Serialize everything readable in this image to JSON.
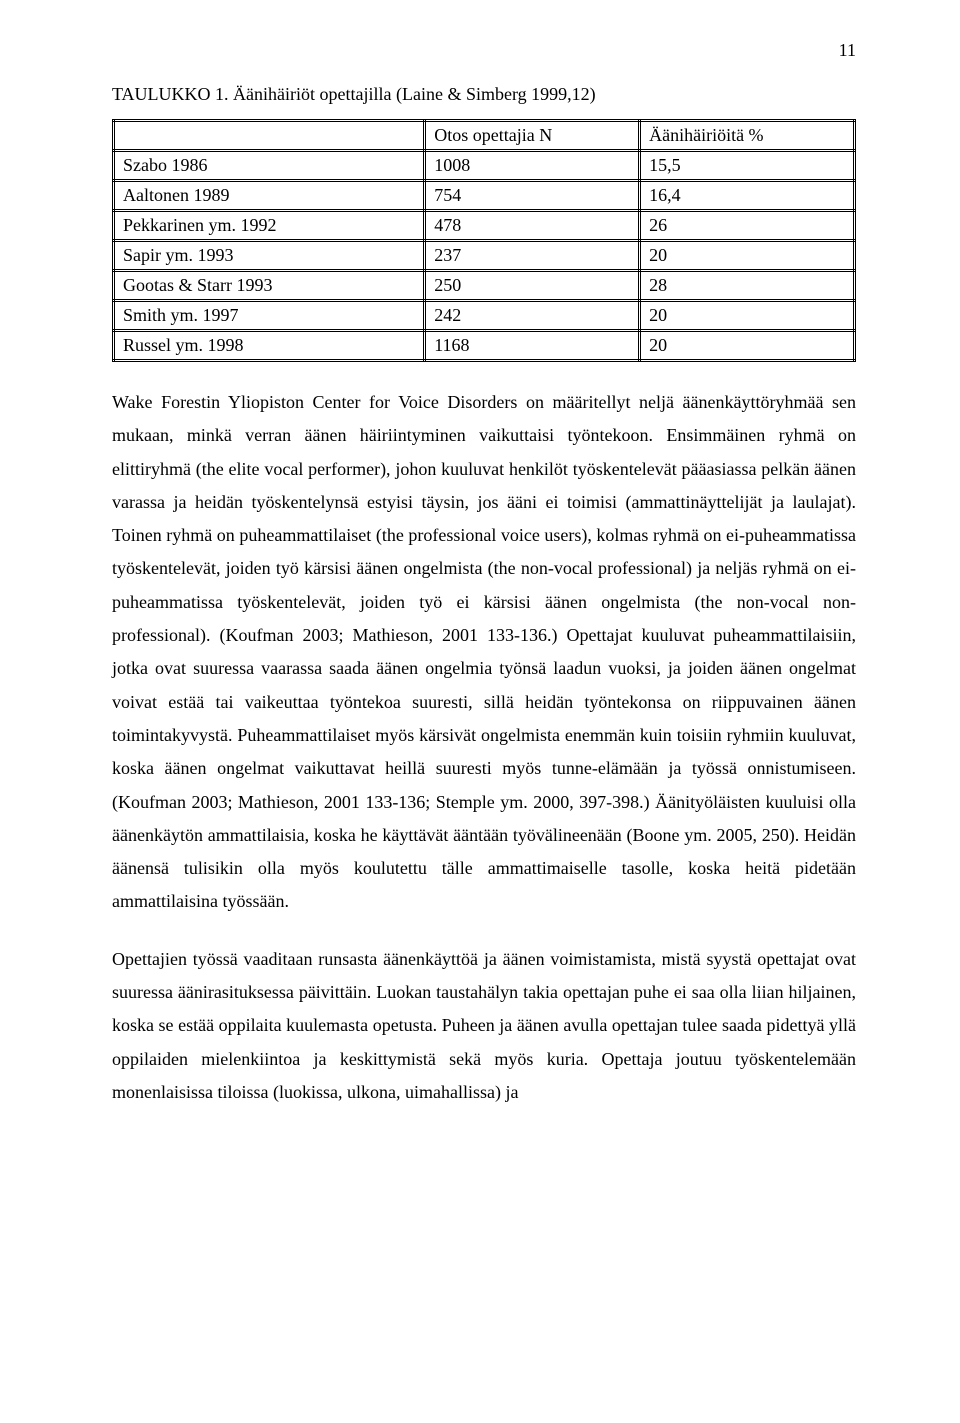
{
  "page_number": "11",
  "table_title": "TAULUKKO 1. Äänihäiriöt opettajilla (Laine & Simberg 1999,12)",
  "table": {
    "header": {
      "blank": "",
      "otos": "Otos opettajia N",
      "aani": "Äänihäiriöitä %"
    },
    "rows": [
      {
        "label": "Szabo 1986",
        "n": "1008",
        "pct": "15,5"
      },
      {
        "label": "Aaltonen 1989",
        "n": "754",
        "pct": "16,4"
      },
      {
        "label": "Pekkarinen ym. 1992",
        "n": "478",
        "pct": "26"
      },
      {
        "label": "Sapir ym. 1993",
        "n": "237",
        "pct": "20"
      },
      {
        "label": "Gootas & Starr 1993",
        "n": "250",
        "pct": "28"
      },
      {
        "label": "Smith ym. 1997",
        "n": "242",
        "pct": "20"
      },
      {
        "label": "Russel ym. 1998",
        "n": "1168",
        "pct": "20"
      }
    ]
  },
  "paragraph1": "Wake Forestin Yliopiston Center for Voice Disorders on määritellyt neljä äänenkäyttöryhmää sen mukaan, minkä verran äänen häiriintyminen vaikuttaisi työntekoon. Ensimmäinen ryhmä on elittiryhmä (the elite vocal performer), johon kuuluvat henkilöt työskentelevät pääasiassa pelkän äänen varassa ja heidän työskentelynsä estyisi täysin, jos ääni ei toimisi (ammattinäyttelijät ja laulajat). Toinen ryhmä on puheammattilaiset (the professional voice users), kolmas ryhmä on ei-puheammatissa työskentelevät, joiden työ kärsisi äänen ongelmista (the non-vocal professional) ja neljäs ryhmä on ei-puheammatissa työskentelevät, joiden työ ei kärsisi äänen ongelmista (the non-vocal non-professional). (Koufman 2003; Mathieson, 2001 133-136.) Opettajat kuuluvat puheammattilaisiin, jotka ovat suuressa vaarassa saada äänen ongelmia työnsä laadun vuoksi, ja joiden äänen ongelmat voivat estää tai vaikeuttaa työntekoa suuresti, sillä heidän työntekonsa on riippuvainen äänen toimintakyvystä. Puheammattilaiset myös kärsivät ongelmista enemmän kuin toisiin ryhmiin kuuluvat, koska äänen ongelmat vaikuttavat heillä suuresti myös tunne-elämään ja työssä onnistumiseen. (Koufman 2003; Mathieson, 2001 133-136; Stemple ym. 2000, 397-398.) Äänityöläisten kuuluisi olla äänenkäytön ammattilaisia, koska he käyttävät ääntään työvälineenään (Boone ym. 2005, 250).  Heidän äänensä tulisikin olla myös koulutettu tälle ammattimaiselle tasolle, koska heitä pidetään ammattilaisina työssään.",
  "paragraph2": "Opettajien työssä vaaditaan runsasta äänenkäyttöä ja äänen voimistamista, mistä syystä opettajat ovat suuressa äänirasituksessa päivittäin. Luokan taustahälyn takia opettajan puhe ei saa olla liian hiljainen, koska se estää oppilaita kuulemasta opetusta. Puheen ja äänen avulla opettajan tulee saada pidettyä yllä oppilaiden mielenkiintoa ja keskittymistä sekä myös kuria. Opettaja joutuu työskentelemään monenlaisissa tiloissa (luokissa, ulkona, uimahallissa) ja"
}
